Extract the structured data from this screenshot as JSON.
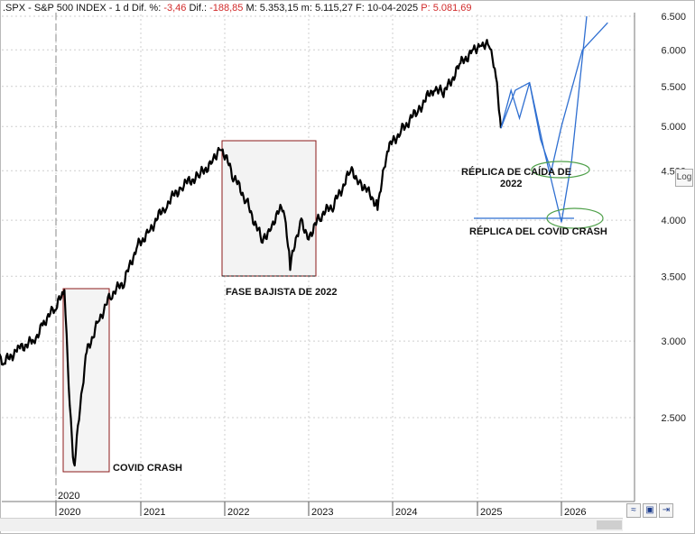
{
  "header": {
    "symbol": ".SPX - S&P 500 INDEX - 1 d",
    "dif_pct_label": "Dif. %:",
    "dif_pct_value": "-3,46",
    "dif_label": "Dif.:",
    "dif_value": "-188,85",
    "max_label": "M:",
    "max_value": "5.353,15",
    "min_label": "m:",
    "min_value": "5.115,27",
    "date_label": "F:",
    "date_value": "10-04-2025",
    "price_label": "P:",
    "price_value": "5.081,69"
  },
  "controls": {
    "log_label": "Log"
  },
  "colors": {
    "price": "#000000",
    "projection": "#2f6fd1",
    "box": "#8b1a1a",
    "ellipse": "#4fa04a",
    "grid": "#cfcfcf"
  },
  "chart_data": {
    "type": "line",
    "title": ".SPX - S&P 500 INDEX",
    "y_scale": "log",
    "y_ticks": [
      "6.500",
      "6.000",
      "5.500",
      "5.000",
      "4.500",
      "4.000",
      "3.500",
      "3.000",
      "2.500"
    ],
    "y_tick_values": [
      6500,
      6000,
      5500,
      5000,
      4500,
      4000,
      3500,
      3000,
      2500
    ],
    "x_ticks": [
      "2020",
      "2021",
      "2022",
      "2023",
      "2024",
      "2025",
      "2026"
    ],
    "x_marker": "2020",
    "series": [
      {
        "name": "S&P 500",
        "x": [
          2019.0,
          2019.15,
          2019.3,
          2019.5,
          2019.7,
          2019.85,
          2020.0,
          2020.1,
          2020.15,
          2020.2,
          2020.22,
          2020.35,
          2020.5,
          2020.65,
          2020.8,
          2020.95,
          2021.1,
          2021.3,
          2021.5,
          2021.7,
          2021.85,
          2021.95,
          2022.1,
          2022.25,
          2022.45,
          2022.55,
          2022.7,
          2022.78,
          2022.9,
          2023.0,
          2023.15,
          2023.3,
          2023.5,
          2023.6,
          2023.82,
          2023.95,
          2024.1,
          2024.3,
          2024.5,
          2024.6,
          2024.8,
          2024.95,
          2025.05,
          2025.15,
          2025.22,
          2025.28
        ],
        "values": [
          2750,
          2900,
          2850,
          2950,
          3000,
          3150,
          3250,
          3380,
          2700,
          2300,
          2250,
          2900,
          3150,
          3350,
          3450,
          3750,
          3900,
          4150,
          4350,
          4450,
          4600,
          4780,
          4450,
          4200,
          3800,
          3950,
          4150,
          3580,
          4000,
          3850,
          4050,
          4150,
          4500,
          4400,
          4150,
          4750,
          4950,
          5200,
          5500,
          5400,
          5800,
          6000,
          6100,
          6050,
          5600,
          4980
        ]
      },
      {
        "name": "Réplica de caída de 2022",
        "x": [
          2025.28,
          2025.4,
          2025.5,
          2025.62,
          2025.75,
          2025.88,
          2026.0,
          2026.25,
          2026.55
        ],
        "values": [
          4980,
          5450,
          5100,
          5550,
          4850,
          4500,
          5000,
          6000,
          6400
        ]
      },
      {
        "name": "Réplica del Covid Crash",
        "x": [
          2025.28,
          2025.45,
          2025.62,
          2025.8,
          2026.0,
          2026.12,
          2026.3
        ],
        "values": [
          4980,
          5450,
          5550,
          4700,
          3980,
          4600,
          6500
        ]
      }
    ],
    "annotations": [
      {
        "text": "COVID CRASH"
      },
      {
        "text": "FASE BAJISTA DE 2022"
      },
      {
        "text": "RÉPLICA DE CAÍDA DE",
        "text2": "2022"
      },
      {
        "text": "RÉPLICA DEL COVID CRASH"
      }
    ]
  }
}
